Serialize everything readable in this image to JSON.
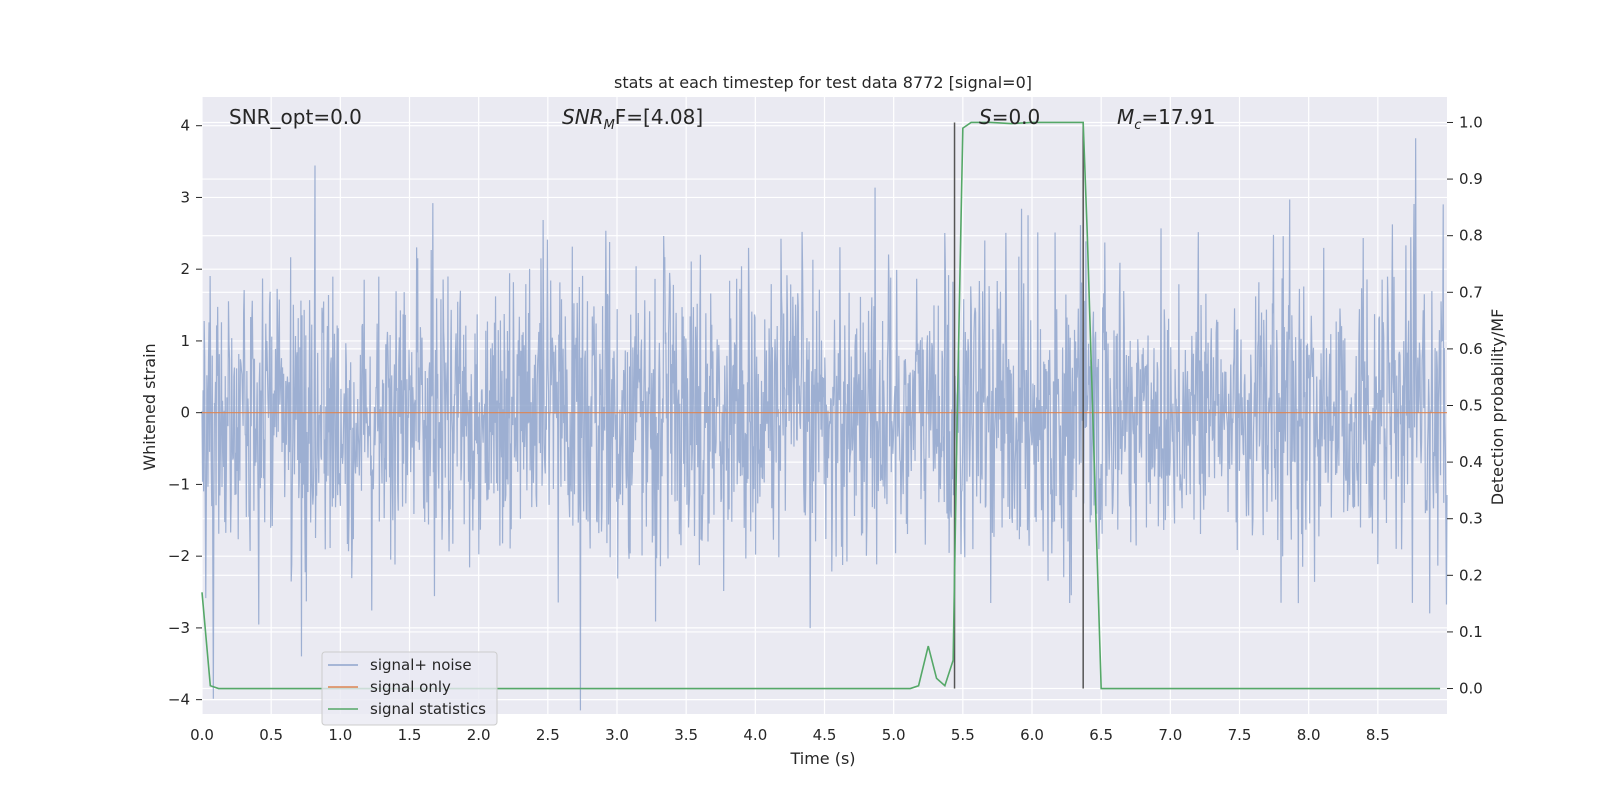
{
  "chart_data": {
    "type": "line",
    "title": "stats at each timestep for test data 8772 [signal=0]",
    "xlabel": "Time (s)",
    "ylabel": "Whitened strain",
    "y2label": "Detection probability/MF",
    "xlim": [
      0,
      9
    ],
    "ylim": [
      -4.2,
      4.4
    ],
    "y2lim": [
      -0.045,
      1.045
    ],
    "xticks": [
      "0.0",
      "0.5",
      "1.0",
      "1.5",
      "2.0",
      "2.5",
      "3.0",
      "3.5",
      "4.0",
      "4.5",
      "5.0",
      "5.5",
      "6.0",
      "6.5",
      "7.0",
      "7.5",
      "8.0",
      "8.5"
    ],
    "yticks": [
      "4",
      "3",
      "2",
      "1",
      "0",
      "−1",
      "−2",
      "−3",
      "−4"
    ],
    "y2ticks": [
      "1.0",
      "0.9",
      "0.8",
      "0.7",
      "0.6",
      "0.5",
      "0.4",
      "0.3",
      "0.2",
      "0.1",
      "0.0"
    ],
    "grid": true,
    "legend_position": "lower-left",
    "annotations": {
      "snr_opt": "SNR_opt=0.0",
      "snr_mf_base": "SNR",
      "snr_mf_sub": "M",
      "snr_mf_rest": "F=[4.08]",
      "s_label_italic": "S",
      "s_label_rest": "=0.0",
      "mc_base": "M",
      "mc_sub": "c",
      "mc_rest": "=17.91"
    },
    "vlines": [
      5.44,
      6.37
    ],
    "series": [
      {
        "name": "signal+ noise",
        "color": "#8fa4cc",
        "kind": "noise",
        "noise_std": 1.0,
        "x_range": [
          0,
          9
        ],
        "n_samples": 2304
      },
      {
        "name": "signal only",
        "color": "#dd8452",
        "x": [
          0,
          9
        ],
        "y": [
          0,
          0
        ]
      },
      {
        "name": "signal statistics",
        "color": "#55a868",
        "axis": "right",
        "x": [
          0.0,
          0.06,
          0.12,
          0.5,
          1.0,
          1.5,
          2.0,
          2.5,
          3.0,
          3.5,
          4.0,
          4.5,
          5.0,
          5.12,
          5.18,
          5.25,
          5.31,
          5.37,
          5.43,
          5.46,
          5.5,
          5.56,
          5.7,
          5.85,
          6.0,
          6.2,
          6.37,
          6.4,
          6.45,
          6.5,
          6.7,
          7.0,
          7.5,
          8.0,
          8.5,
          8.95
        ],
        "y": [
          0.17,
          0.005,
          0.0,
          0.0,
          0.0,
          0.0,
          0.0,
          0.0,
          0.0,
          0.0,
          0.0,
          0.0,
          0.0,
          0.0,
          0.005,
          0.075,
          0.018,
          0.005,
          0.05,
          0.49,
          0.99,
          1.0,
          1.0,
          0.998,
          1.0,
          1.0,
          1.0,
          0.8,
          0.4,
          0.0,
          0.0,
          0.0,
          0.0,
          0.0,
          0.0,
          0.0
        ]
      }
    ]
  }
}
